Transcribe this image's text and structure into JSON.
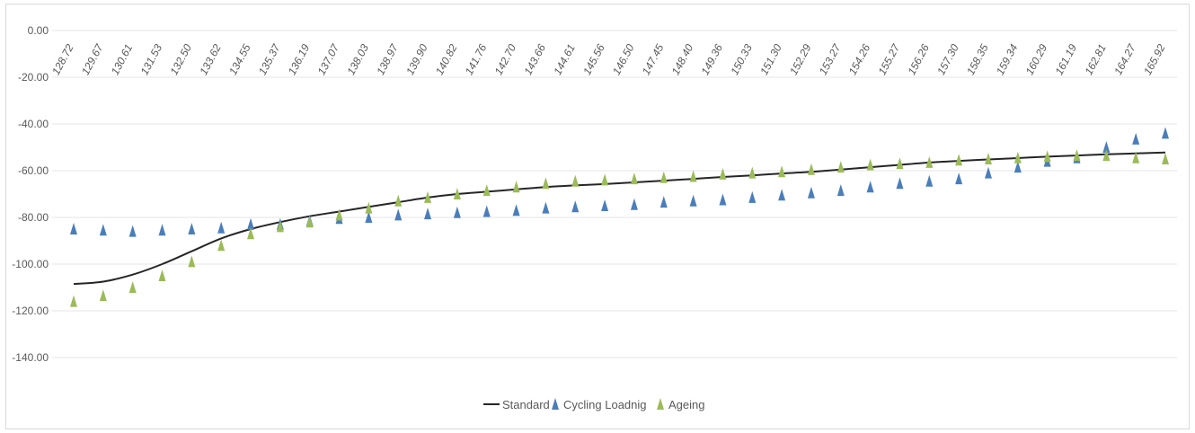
{
  "chart_data": {
    "type": "line",
    "title": "",
    "xlabel": "",
    "ylabel": "",
    "ylim": [
      -140,
      0
    ],
    "y_ticks": [
      "0.00",
      "-20.00",
      "-40.00",
      "-60.00",
      "-80.00",
      "-100.00",
      "-120.00",
      "-140.00"
    ],
    "grid": true,
    "legend_position": "bottom",
    "x_axis_position": "top",
    "categories": [
      "128.72",
      "129.67",
      "130.61",
      "131.53",
      "132.50",
      "133.62",
      "134.55",
      "135.37",
      "136.19",
      "137.07",
      "138.03",
      "138.97",
      "139.90",
      "140.82",
      "141.76",
      "142.70",
      "143.66",
      "144.61",
      "145.56",
      "146.50",
      "147.45",
      "148.40",
      "149.36",
      "150.33",
      "151.30",
      "152.29",
      "153.27",
      "154.26",
      "155.27",
      "156.26",
      "157.30",
      "158.35",
      "159.34",
      "160.29",
      "161.19",
      "162.81",
      "164.27",
      "165.92"
    ],
    "series": [
      {
        "name": "Standard",
        "style": "line",
        "color": "#262626",
        "values": [
          -108.5,
          -107.5,
          -104.5,
          -100,
          -94.5,
          -89,
          -85,
          -82,
          -79.5,
          -77.5,
          -75.5,
          -73.5,
          -71.5,
          -70,
          -69,
          -68,
          -67,
          -66.3,
          -65.7,
          -65,
          -64.3,
          -63.5,
          -62.7,
          -62,
          -61.2,
          -60.5,
          -59.5,
          -58.5,
          -57.5,
          -56.5,
          -55.8,
          -55.2,
          -54.6,
          -54,
          -53.5,
          -53,
          -52.6,
          -52.2
        ]
      },
      {
        "name": "Cycling Loadnig",
        "style": "triangle-markers",
        "color": "#4a7ebb",
        "values": [
          -85,
          -85.5,
          -86,
          -85.5,
          -85,
          -84.5,
          -83,
          -83,
          -81.5,
          -80.5,
          -80,
          -79,
          -78.5,
          -78,
          -77.5,
          -77,
          -76,
          -75.5,
          -75,
          -74.5,
          -73.5,
          -73,
          -72.5,
          -71.5,
          -70.5,
          -69.5,
          -68.5,
          -67,
          -65.5,
          -64.5,
          -63.5,
          -61,
          -58.5,
          -56,
          -54.5,
          -50,
          -46.5,
          -44
        ]
      },
      {
        "name": "Ageing",
        "style": "triangle-markers",
        "color": "#9bbb59",
        "values": [
          -116,
          -113.5,
          -110,
          -105,
          -99,
          -92,
          -87,
          -84,
          -82,
          -79,
          -76,
          -73,
          -71.5,
          -70,
          -68.5,
          -67,
          -65.5,
          -64.5,
          -64,
          -63.5,
          -63,
          -62.5,
          -61.5,
          -61,
          -60.5,
          -59.5,
          -58.5,
          -57.5,
          -57,
          -56.5,
          -55.5,
          -55,
          -54.5,
          -54,
          -53.5,
          -53.5,
          -54.5,
          -55
        ]
      }
    ]
  }
}
